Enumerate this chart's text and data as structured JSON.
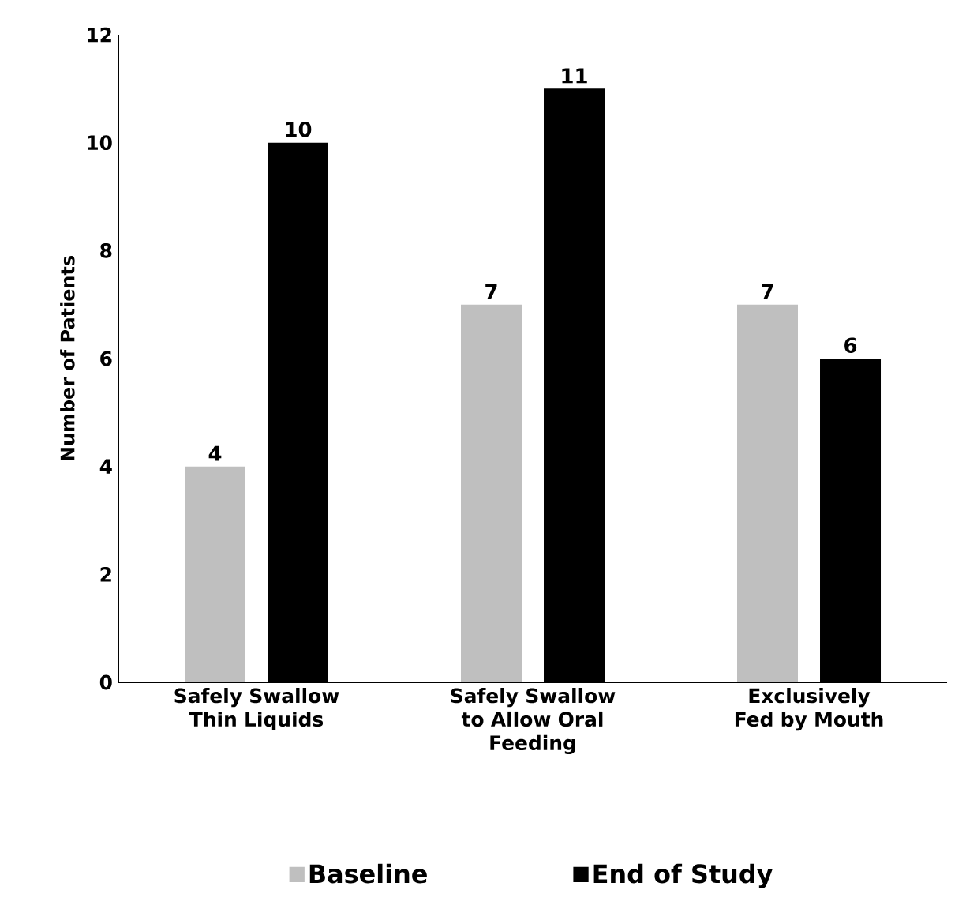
{
  "chart_data": {
    "type": "bar",
    "ylabel": "Number of Patients",
    "categories": [
      "Safely Swallow Thin Liquids",
      "Safely Swallow to Allow Oral Feeding",
      "Exclusively Fed by Mouth"
    ],
    "series": [
      {
        "name": "Baseline",
        "color": "#bfbfbf",
        "values": [
          4,
          7,
          7
        ]
      },
      {
        "name": "End of Study",
        "color": "#000000",
        "values": [
          10,
          11,
          6
        ]
      }
    ],
    "ylim": [
      0,
      12
    ],
    "yticks": [
      0,
      2,
      4,
      6,
      8,
      10,
      12
    ],
    "data_labels": true,
    "legend": "bottom",
    "grid": false
  }
}
